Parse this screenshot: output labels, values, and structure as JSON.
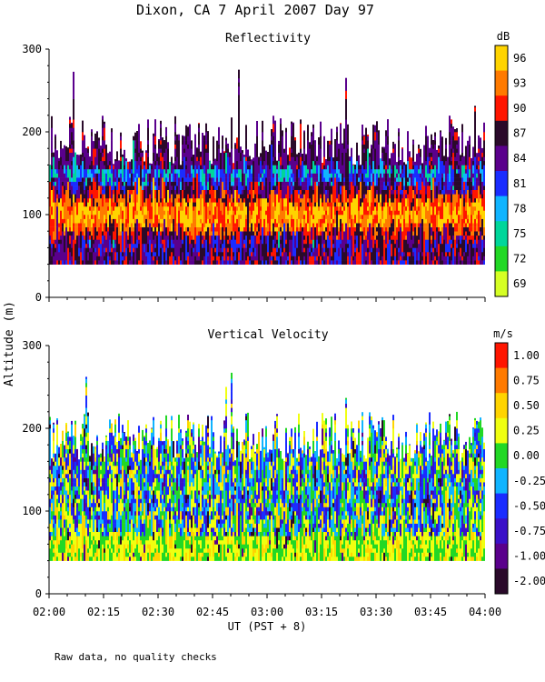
{
  "header": {
    "title": "Dixon, CA   7 April 2007   Day   97",
    "footnote": "Raw data, no quality checks"
  },
  "chart_data": [
    {
      "type": "heatmap",
      "title": "Reflectivity",
      "xlabel": "UT  (PST + 8)",
      "ylabel": "Altitude (m)",
      "x_ticks": [
        "02:00",
        "02:15",
        "02:30",
        "02:45",
        "03:00",
        "03:15",
        "03:30",
        "03:45",
        "04:00"
      ],
      "y_ticks": [
        0,
        100,
        200,
        300
      ],
      "ylim": [
        0,
        300
      ],
      "data_altitude_range": [
        40,
        200
      ],
      "colorbar": {
        "unit": "dB",
        "labels": [
          "96",
          "93",
          "90",
          "87",
          "84",
          "81",
          "78",
          "75",
          "72",
          "69"
        ],
        "colors": [
          "#ffd400",
          "#ff7a00",
          "#ff1500",
          "#2a0a2a",
          "#5a008c",
          "#1a2cff",
          "#10b4ff",
          "#00d69a",
          "#22d825",
          "#d6ff24"
        ]
      },
      "description_values": "Strongest echoes (90-96 dB) concentrated between 60 and 130 m altitude"
    },
    {
      "type": "heatmap",
      "title": "Vertical Velocity",
      "xlabel": "UT  (PST + 8)",
      "ylabel": "Altitude (m)",
      "x_ticks": [
        "02:00",
        "02:15",
        "02:30",
        "02:45",
        "03:00",
        "03:15",
        "03:30",
        "03:45",
        "04:00"
      ],
      "y_ticks": [
        0,
        100,
        200,
        300
      ],
      "ylim": [
        0,
        300
      ],
      "data_altitude_range": [
        40,
        200
      ],
      "colorbar": {
        "unit": "m/s",
        "labels": [
          "1.00",
          "0.75",
          "0.50",
          "0.25",
          "0.00",
          "-0.25",
          "-0.50",
          "-0.75",
          "-1.00",
          "-2.00"
        ],
        "colors": [
          "#ff1500",
          "#ff7a00",
          "#ffd400",
          "#f0ff10",
          "#22d825",
          "#10b4ff",
          "#1a2cff",
          "#3a10c8",
          "#5a008c",
          "#2a0a2a"
        ]
      }
    }
  ]
}
